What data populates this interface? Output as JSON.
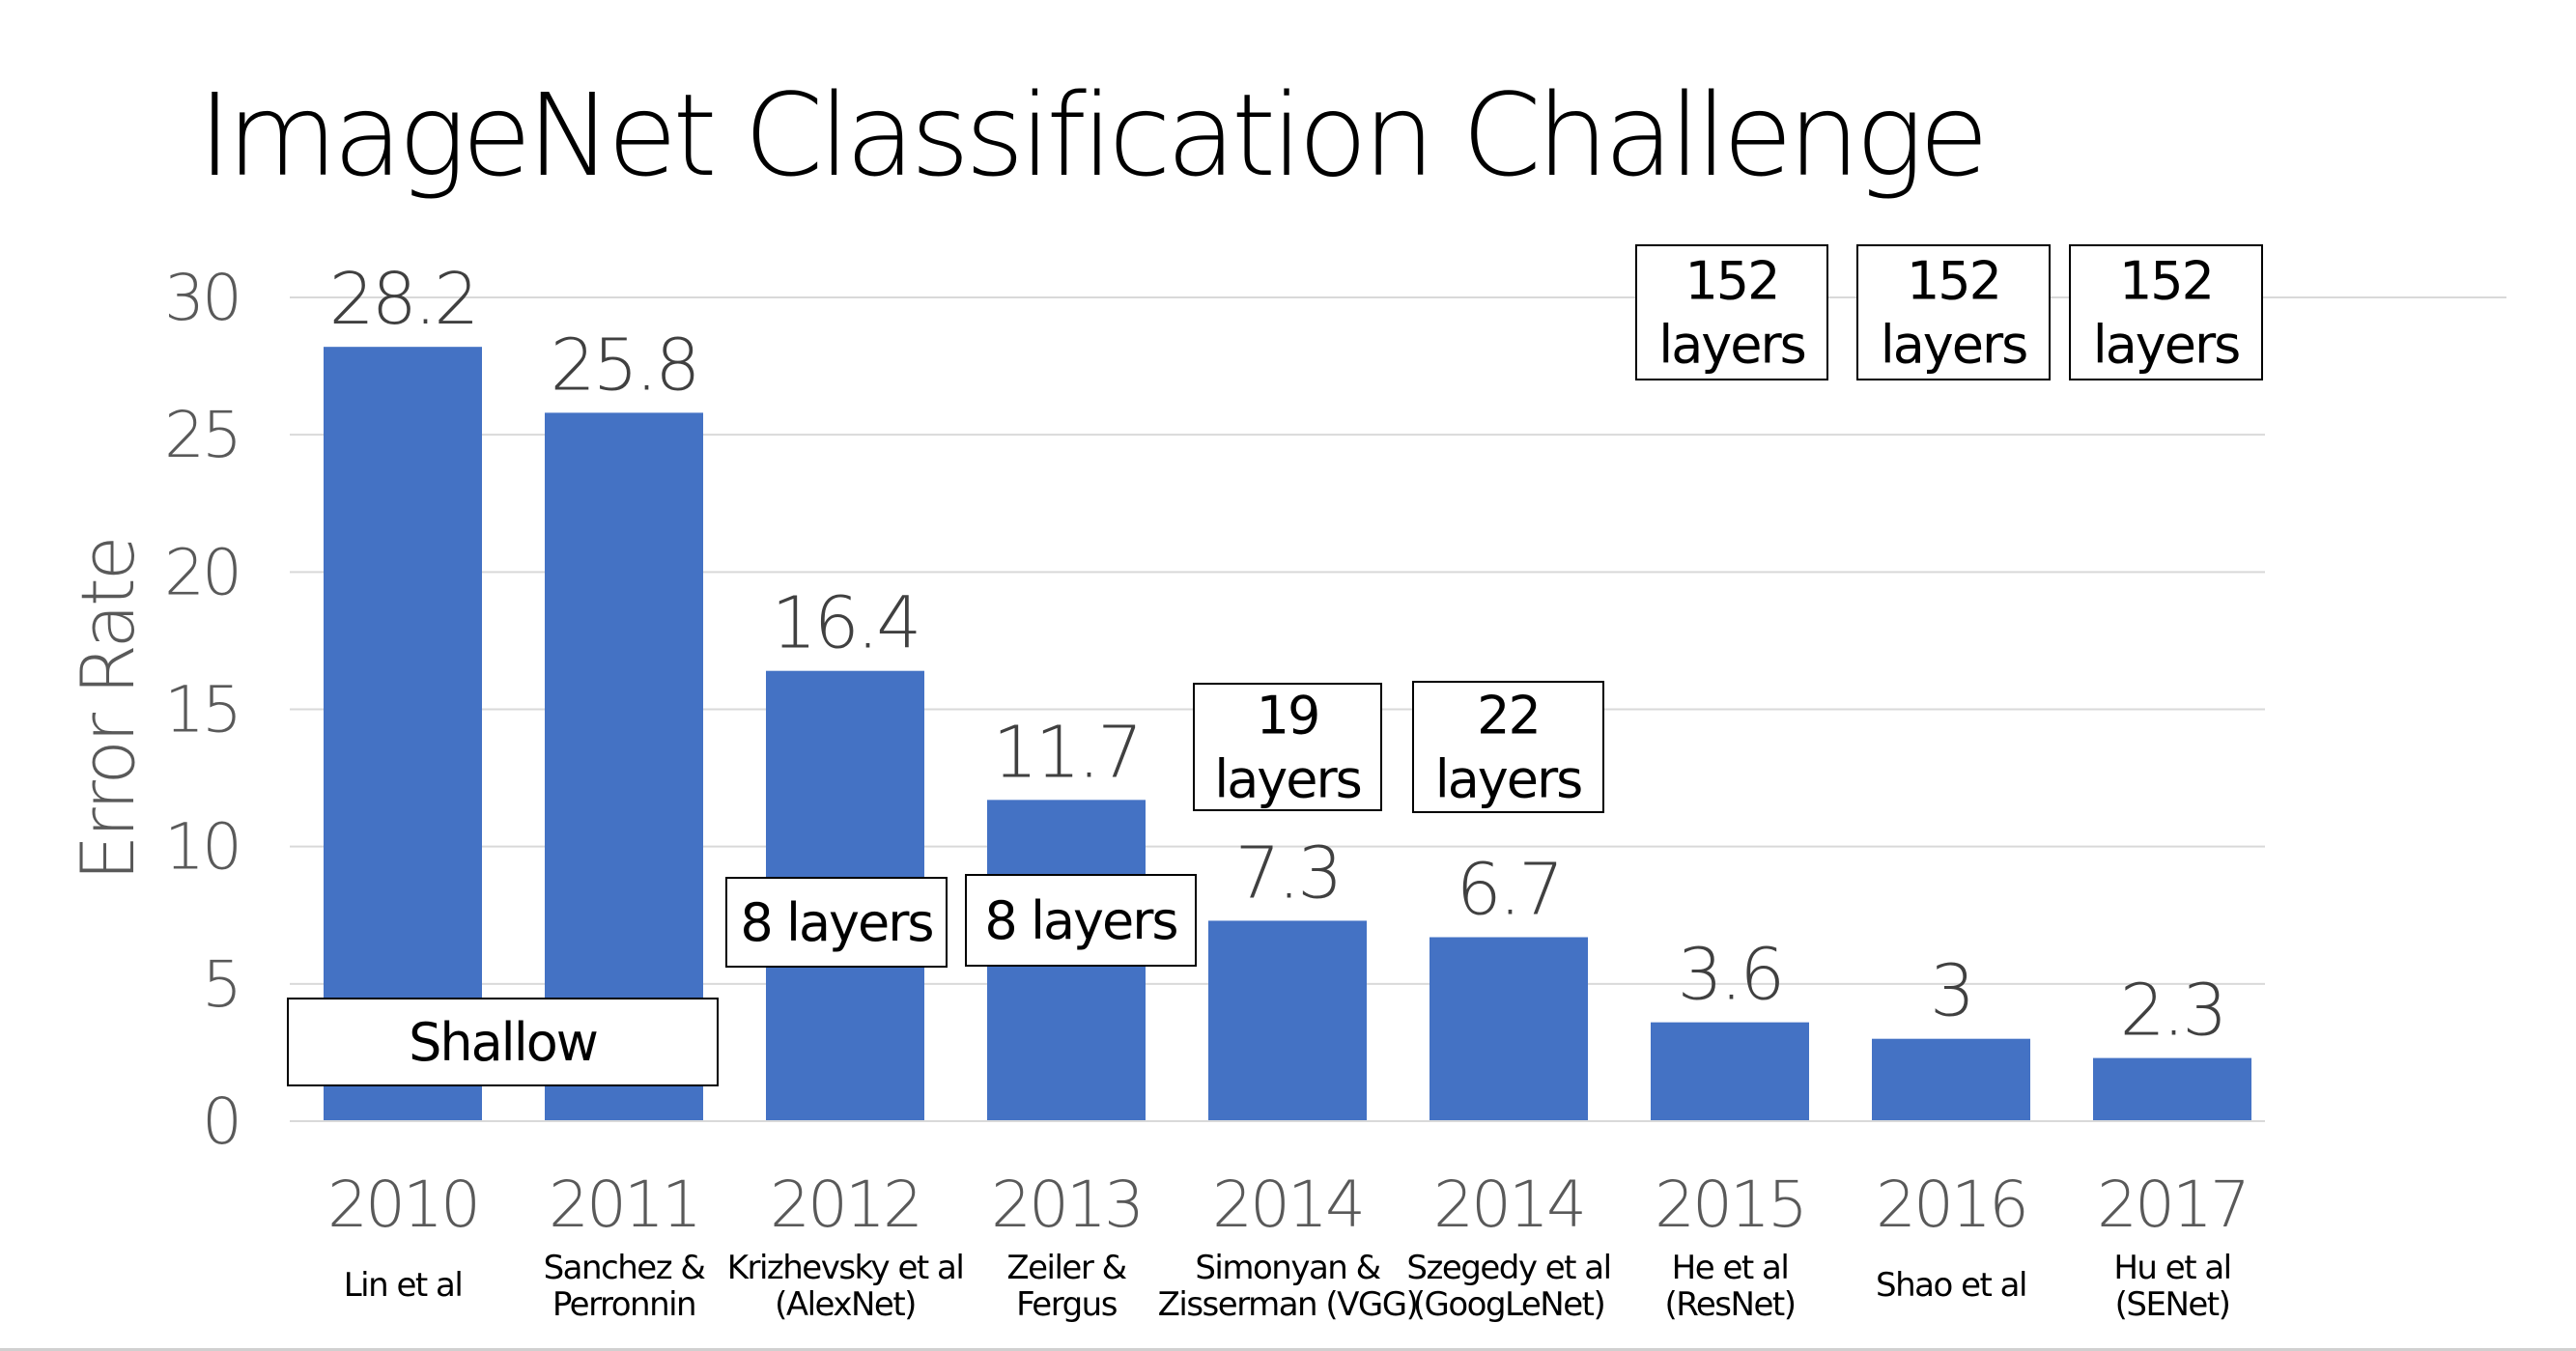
{
  "chart_data": {
    "type": "bar",
    "title": "ImageNet Classification Challenge",
    "ylabel": "Error Rate",
    "ylim": [
      0,
      30
    ],
    "yticks": [
      0,
      5,
      10,
      15,
      20,
      25,
      30
    ],
    "grid": true,
    "categories": [
      {
        "year": "2010",
        "authors": [
          "Lin et al"
        ]
      },
      {
        "year": "2011",
        "authors": [
          "Sanchez &",
          "Perronnin"
        ]
      },
      {
        "year": "2012",
        "authors": [
          "Krizhevsky et al",
          "(AlexNet)"
        ]
      },
      {
        "year": "2013",
        "authors": [
          "Zeiler &",
          "Fergus"
        ]
      },
      {
        "year": "2014",
        "authors": [
          "Simonyan &",
          "Zisserman (VGG)"
        ]
      },
      {
        "year": "2014",
        "authors": [
          "Szegedy et al",
          "(GoogLeNet)"
        ]
      },
      {
        "year": "2015",
        "authors": [
          "He et al",
          "(ResNet)"
        ]
      },
      {
        "year": "2016",
        "authors": [
          "Shao et al"
        ]
      },
      {
        "year": "2017",
        "authors": [
          "Hu et al",
          "(SENet)"
        ]
      }
    ],
    "values": [
      28.2,
      25.8,
      16.4,
      11.7,
      7.3,
      6.7,
      3.6,
      3,
      2.3
    ],
    "bar_color": "#4472C4",
    "annotations": [
      {
        "text": [
          "Shallow"
        ],
        "bars": [
          0,
          1
        ]
      },
      {
        "text": [
          "8 layers"
        ],
        "bars": [
          2
        ]
      },
      {
        "text": [
          "8 layers"
        ],
        "bars": [
          3
        ]
      },
      {
        "text": [
          "19",
          "layers"
        ],
        "bars": [
          4
        ]
      },
      {
        "text": [
          "22",
          "layers"
        ],
        "bars": [
          5
        ]
      },
      {
        "text": [
          "152",
          "layers"
        ],
        "bars": [
          6
        ]
      },
      {
        "text": [
          "152",
          "layers"
        ],
        "bars": [
          7
        ]
      },
      {
        "text": [
          "152",
          "layers"
        ],
        "bars": [
          8
        ]
      }
    ]
  }
}
